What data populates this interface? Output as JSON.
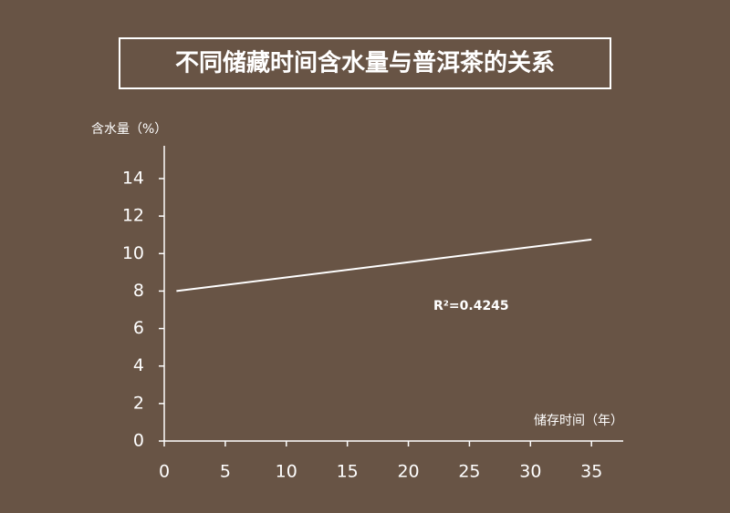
{
  "chart_data": {
    "type": "line",
    "title": "不同储藏时间含水量与普洱茶的关系",
    "y_label": "含水量（%）",
    "x_label": "储存时间（年）",
    "annotation": "R²=0.4245",
    "x": [
      1,
      35
    ],
    "series": [
      {
        "color": "#ffffff",
        "values": [
          8.0,
          10.75
        ]
      }
    ],
    "xlim": [
      0,
      37.6
    ],
    "xticks": [
      0,
      5,
      10,
      15,
      20,
      25,
      30,
      35
    ],
    "ylim": [
      0,
      15.75
    ],
    "yticks": [
      0,
      2,
      4,
      6,
      8,
      10,
      12,
      14
    ]
  }
}
